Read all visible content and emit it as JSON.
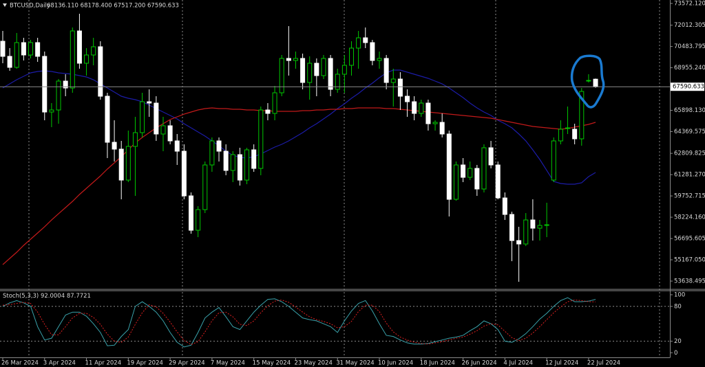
{
  "chart_data": [
    {
      "type": "candlestick",
      "title": "BTCUSD,Daily",
      "subtitle": "68136.110 68178.400 67517.200 67590.633",
      "categories": [
        "26 Mar 2024",
        null,
        null,
        null,
        null,
        null,
        "3 Apr 2024",
        null,
        null,
        null,
        null,
        null,
        "11 Apr 2024",
        null,
        null,
        null,
        null,
        null,
        "19 Apr 2024",
        null,
        null,
        null,
        null,
        null,
        "29 Apr 2024",
        null,
        null,
        null,
        null,
        null,
        "7 May 2024",
        null,
        null,
        null,
        null,
        null,
        "15 May 2024",
        null,
        null,
        null,
        null,
        null,
        "23 May 2024",
        null,
        null,
        null,
        null,
        null,
        "31 May 2024",
        null,
        null,
        null,
        null,
        null,
        "10 Jun 2024",
        null,
        null,
        null,
        null,
        null,
        "18 Jun 2024",
        null,
        null,
        null,
        null,
        null,
        "26 Jun 2024",
        null,
        null,
        null,
        null,
        null,
        "4 Jul 2024",
        null,
        null,
        null,
        null,
        null,
        "12 Jul 2024",
        null,
        null,
        null,
        null,
        null,
        "22 Jul 2024",
        null
      ],
      "open": [
        70858,
        69773,
        68983,
        70760,
        69872,
        70760,
        69773,
        65776,
        65924,
        67997,
        67503,
        71598,
        69279,
        69872,
        70463,
        66911,
        63605,
        63112,
        60891,
        63309,
        64296,
        66516,
        66418,
        64198,
        64790,
        63704,
        62964,
        59757,
        57289,
        58770,
        61977,
        63704,
        62964,
        61582,
        62717,
        60891,
        63063,
        61730,
        65924,
        65678,
        67158,
        69625,
        69477,
        69625,
        67898,
        69279,
        68391,
        69625,
        67405,
        68490,
        69131,
        70365,
        71105,
        70760,
        69477,
        69625,
        67898,
        68145,
        66911,
        66516,
        65678,
        66418,
        64937,
        65036,
        64198,
        59510,
        61977,
        61089,
        61730,
        60250,
        63211,
        61977,
        59609,
        58424,
        56549,
        56302,
        58029,
        57437,
        57635,
        60891,
        63704,
        64592,
        64543,
        63852,
        67997,
        68136.11
      ],
      "high": [
        71598,
        70365,
        71450,
        71105,
        70957,
        71105,
        70118,
        66418,
        68145,
        68490,
        71845,
        72832,
        70365,
        71105,
        70858,
        67158,
        65184,
        63704,
        64444,
        65431,
        67158,
        67405,
        66911,
        65431,
        65184,
        64198,
        63457,
        60003,
        59016,
        62224,
        63951,
        63951,
        63457,
        62964,
        63211,
        63211,
        63457,
        66171,
        66418,
        67651,
        69872,
        71944,
        70118,
        69970,
        69773,
        69625,
        69872,
        69872,
        68885,
        69872,
        70858,
        71598,
        71845,
        70957,
        70118,
        69872,
        68885,
        68638,
        67405,
        66911,
        66664,
        66664,
        65184,
        65678,
        64444,
        62224,
        62471,
        62224,
        61977,
        63457,
        63704,
        62224,
        60003,
        58622,
        57536,
        58523,
        59510,
        58029,
        59263,
        63951,
        65184,
        66171,
        64937,
        67503,
        68490,
        68178.4
      ],
      "low": [
        69279,
        68737,
        68885,
        69477,
        69625,
        69378,
        65184,
        64691,
        64937,
        66911,
        67158,
        68885,
        68391,
        69131,
        66664,
        62471,
        62224,
        59510,
        60743,
        59757,
        63951,
        65431,
        63704,
        62964,
        63457,
        61977,
        59510,
        57042,
        56795,
        58523,
        61484,
        62224,
        61237,
        60743,
        60497,
        60595,
        61484,
        61237,
        65184,
        65184,
        66911,
        68391,
        68885,
        67405,
        66664,
        66911,
        68145,
        66911,
        67158,
        67158,
        68391,
        68885,
        70365,
        69131,
        68885,
        67405,
        66171,
        65924,
        65431,
        65184,
        65431,
        64444,
        64444,
        63951,
        58276,
        59411,
        60743,
        60891,
        59757,
        60003,
        61730,
        59510,
        58029,
        55068,
        53588,
        56154,
        56549,
        56549,
        56795,
        60743,
        63457,
        64198,
        63457,
        63359,
        67898,
        67517.2
      ],
      "close": [
        69773,
        68983,
        70760,
        69872,
        70760,
        69773,
        65776,
        65924,
        67997,
        67503,
        71598,
        69279,
        69872,
        70463,
        66911,
        63605,
        63112,
        60891,
        63309,
        64296,
        66516,
        66418,
        64198,
        64790,
        63704,
        62964,
        59757,
        57289,
        58770,
        61977,
        63704,
        62964,
        61582,
        62717,
        60891,
        63063,
        61730,
        65924,
        65678,
        67158,
        69625,
        69477,
        69625,
        67898,
        69279,
        68391,
        69625,
        67405,
        68490,
        69131,
        70365,
        71105,
        70760,
        69477,
        69625,
        67898,
        68145,
        66911,
        66516,
        65678,
        66418,
        64937,
        65036,
        64198,
        59510,
        61977,
        61089,
        61730,
        60250,
        63211,
        61977,
        59609,
        58424,
        56549,
        56302,
        58029,
        57437,
        57635,
        57685,
        63704,
        64543,
        64642,
        63852,
        67256,
        68046,
        67590.633
      ],
      "up_color": "#00c800",
      "down_color": "#ffffff",
      "lines": [
        {
          "color": "#1c1ca8",
          "values": [
            67503,
            67799,
            68095,
            68342,
            68589,
            68688,
            68737,
            68688,
            68589,
            68540,
            68490,
            68392,
            68293,
            68095,
            67799,
            67503,
            67207,
            66911,
            66763,
            66664,
            66516,
            66270,
            66023,
            65776,
            65530,
            65283,
            64938,
            64642,
            64346,
            64050,
            63704,
            63359,
            62964,
            62668,
            62520,
            62471,
            62569,
            62767,
            63014,
            63260,
            63457,
            63704,
            64000,
            64296,
            64642,
            64938,
            65283,
            65628,
            66023,
            66369,
            66763,
            67109,
            67503,
            67849,
            68243,
            68589,
            68786,
            68786,
            68638,
            68490,
            68342,
            68194,
            67997,
            67799,
            67503,
            67158,
            66813,
            66418,
            66073,
            65776,
            65530,
            65184,
            64938,
            64642,
            64198,
            63704,
            63063,
            62372,
            61583,
            60793,
            60645,
            60596,
            60596,
            60695,
            61139,
            61435
          ]
        },
        {
          "color": "#c41a1a",
          "values": [
            54823,
            55267,
            55711,
            56205,
            56649,
            57093,
            57537,
            58028,
            58475,
            58918,
            59362,
            59856,
            60300,
            60744,
            61188,
            61681,
            62125,
            62569,
            63063,
            63556,
            63951,
            64296,
            64642,
            64938,
            65235,
            65431,
            65628,
            65776,
            65925,
            66023,
            66073,
            66023,
            66023,
            65974,
            65974,
            65925,
            65925,
            65875,
            65875,
            65826,
            65826,
            65826,
            65826,
            65875,
            65875,
            65925,
            65925,
            65974,
            65974,
            66023,
            66023,
            66073,
            66073,
            66073,
            66073,
            66023,
            66023,
            65974,
            65925,
            65875,
            65826,
            65776,
            65727,
            65678,
            65628,
            65579,
            65530,
            65481,
            65431,
            65382,
            65332,
            65235,
            65135,
            65036,
            64938,
            64839,
            64740,
            64691,
            64642,
            64593,
            64543,
            64593,
            64691,
            64790,
            64888,
            65036
          ]
        }
      ],
      "ylim": [
        53096,
        73819
      ],
      "yticks": [
        {
          "value": 73572.12,
          "label": "73572.120"
        },
        72012.305,
        70483.795,
        {
          "value": 68955.24,
          "label": "68955.240"
        },
        {
          "value": 65898.13,
          "label": "65898.130"
        },
        64369.575,
        62809.825,
        {
          "value": 61281.27,
          "label": "61281.270"
        },
        59752.715,
        {
          "value": 58224.16,
          "label": "58224.160"
        },
        56695.605,
        {
          "value": 55167.05,
          "label": "55167.050"
        },
        53638.495
      ]
    },
    {
      "type": "line",
      "title": "Stoch(5,3,3)",
      "series": [
        {
          "color": "#3aa3ac",
          "values": [
            80,
            86,
            90,
            86,
            80,
            45,
            22,
            25,
            45,
            65,
            70,
            70,
            63,
            50,
            35,
            12,
            13,
            28,
            40,
            80,
            88,
            80,
            70,
            55,
            35,
            18,
            10,
            13,
            35,
            60,
            70,
            78,
            62,
            45,
            40,
            55,
            70,
            82,
            92,
            93,
            88,
            80,
            70,
            60,
            57,
            55,
            50,
            45,
            35,
            55,
            72,
            85,
            90,
            72,
            50,
            30,
            28,
            22,
            17,
            15,
            15,
            16,
            19,
            22,
            25,
            27,
            30,
            38,
            45,
            55,
            50,
            40,
            20,
            18,
            24,
            33,
            45,
            58,
            68,
            80,
            90,
            95,
            88,
            88,
            89,
            92.0004
          ]
        },
        {
          "color": "#e02020",
          "dash": "dotted",
          "values": [
            82,
            83,
            85,
            87,
            85,
            70,
            49,
            31,
            31,
            45,
            60,
            68,
            68,
            61,
            49,
            32,
            20,
            18,
            27,
            49,
            69,
            83,
            79,
            68,
            53,
            36,
            21,
            14,
            19,
            36,
            55,
            69,
            70,
            62,
            49,
            47,
            55,
            69,
            81,
            89,
            91,
            87,
            79,
            70,
            62,
            57,
            54,
            50,
            43,
            45,
            54,
            71,
            82,
            82,
            71,
            51,
            36,
            27,
            22,
            18,
            16,
            15,
            17,
            19,
            22,
            25,
            27,
            32,
            38,
            46,
            50,
            48,
            37,
            26,
            21,
            25,
            34,
            45,
            57,
            69,
            79,
            88,
            91,
            90,
            88,
            87.7721
          ]
        }
      ],
      "ylim": [
        -8,
        107
      ],
      "yticks": [
        100,
        80,
        20,
        0
      ],
      "levels": [
        80,
        20
      ]
    }
  ]
}
